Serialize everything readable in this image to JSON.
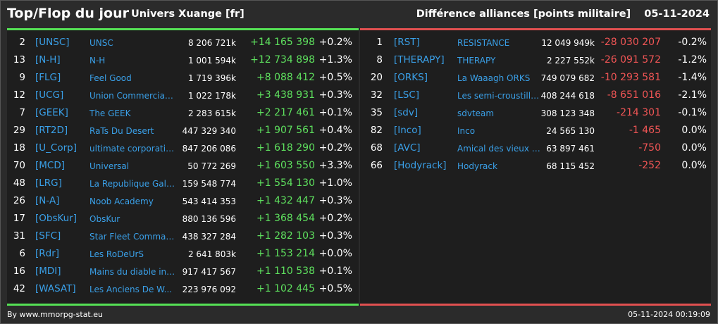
{
  "header": {
    "title": "Top/Flop du jour",
    "subtitle": "Univers Xuange [fr]",
    "metric": "Différence alliances [points militaire]",
    "date": "05-11-2024"
  },
  "top": [
    {
      "rank": "2",
      "tag": "[UNSC]",
      "name": "UNSC",
      "points": "8 206 721k",
      "diff": "+14 165 398",
      "pct": "+0.2%"
    },
    {
      "rank": "13",
      "tag": "[N-H]",
      "name": "N-H",
      "points": "1 001 594k",
      "diff": "+12 734 898",
      "pct": "+1.3%"
    },
    {
      "rank": "9",
      "tag": "[FLG]",
      "name": "Feel Good",
      "points": "1 719 396k",
      "diff": "+8 088 412",
      "pct": "+0.5%"
    },
    {
      "rank": "12",
      "tag": "[UCG]",
      "name": "Union Commerciale...",
      "points": "1 022 178k",
      "diff": "+3 438 931",
      "pct": "+0.3%"
    },
    {
      "rank": "7",
      "tag": "[GEEK]",
      "name": "The GEEK",
      "points": "2 283 615k",
      "diff": "+2 217 461",
      "pct": "+0.1%"
    },
    {
      "rank": "29",
      "tag": "[RT2D]",
      "name": "RaTs Du Desert",
      "points": "447 329 340",
      "diff": "+1 907 561",
      "pct": "+0.4%"
    },
    {
      "rank": "18",
      "tag": "[U_Corp]",
      "name": "ultimate corporation",
      "points": "847 206 086",
      "diff": "+1 618 290",
      "pct": "+0.2%"
    },
    {
      "rank": "70",
      "tag": "[MCD]",
      "name": "Universal",
      "points": "50 772 269",
      "diff": "+1 603 550",
      "pct": "+3.3%"
    },
    {
      "rank": "48",
      "tag": "[LRG]",
      "name": "La Republique Gala...",
      "points": "159 548 774",
      "diff": "+1 554 130",
      "pct": "+1.0%"
    },
    {
      "rank": "26",
      "tag": "[N-A]",
      "name": "Noob Academy",
      "points": "543 414 353",
      "diff": "+1 432 447",
      "pct": "+0.3%"
    },
    {
      "rank": "17",
      "tag": "[ObsKur]",
      "name": "ObsKur",
      "points": "880 136 596",
      "diff": "+1 368 454",
      "pct": "+0.2%"
    },
    {
      "rank": "31",
      "tag": "[SFC]",
      "name": "Star Fleet Command",
      "points": "438 327 284",
      "diff": "+1 282 103",
      "pct": "+0.3%"
    },
    {
      "rank": "6",
      "tag": "[Rdr]",
      "name": "Les RoDeUrS",
      "points": "2 641 803k",
      "diff": "+1 153 214",
      "pct": "+0.0%"
    },
    {
      "rank": "16",
      "tag": "[MDI]",
      "name": "Mains du diable inco...",
      "points": "917 417 567",
      "diff": "+1 110 538",
      "pct": "+0.1%"
    },
    {
      "rank": "42",
      "tag": "[WASAT]",
      "name": "Les Anciens De W...",
      "points": "223 976 092",
      "diff": "+1 102 445",
      "pct": "+0.5%"
    }
  ],
  "flop": [
    {
      "rank": "1",
      "tag": "[RST]",
      "name": "RESISTANCE",
      "points": "12 049 949k",
      "diff": "-28 030 207",
      "pct": "-0.2%"
    },
    {
      "rank": "8",
      "tag": "[THERAPY]",
      "name": "THERAPY",
      "points": "2 227 552k",
      "diff": "-26 091 572",
      "pct": "-1.2%"
    },
    {
      "rank": "20",
      "tag": "[ORKS]",
      "name": "La Waaagh ORKS",
      "points": "749 079 682",
      "diff": "-10 293 581",
      "pct": "-1.4%"
    },
    {
      "rank": "32",
      "tag": "[LSC]",
      "name": "Les semi-croustilla...",
      "points": "408 244 618",
      "diff": "-8 651 016",
      "pct": "-2.1%"
    },
    {
      "rank": "35",
      "tag": "[sdv]",
      "name": "sdvteam",
      "points": "308 123 348",
      "diff": "-214 301",
      "pct": "-0.1%"
    },
    {
      "rank": "82",
      "tag": "[Inco]",
      "name": "Inco",
      "points": "24 565 130",
      "diff": "-1 465",
      "pct": "0.0%"
    },
    {
      "rank": "68",
      "tag": "[AVC]",
      "name": "Amical des vieux co...",
      "points": "63 897 461",
      "diff": "-750",
      "pct": "0.0%"
    },
    {
      "rank": "66",
      "tag": "[Hodyrack]",
      "name": "Hodyrack",
      "points": "68 115 452",
      "diff": "-252",
      "pct": "0.0%"
    }
  ],
  "footer": {
    "source": "By www.mmorpg-stat.eu",
    "timestamp": "05-11-2024 00:19:09"
  }
}
